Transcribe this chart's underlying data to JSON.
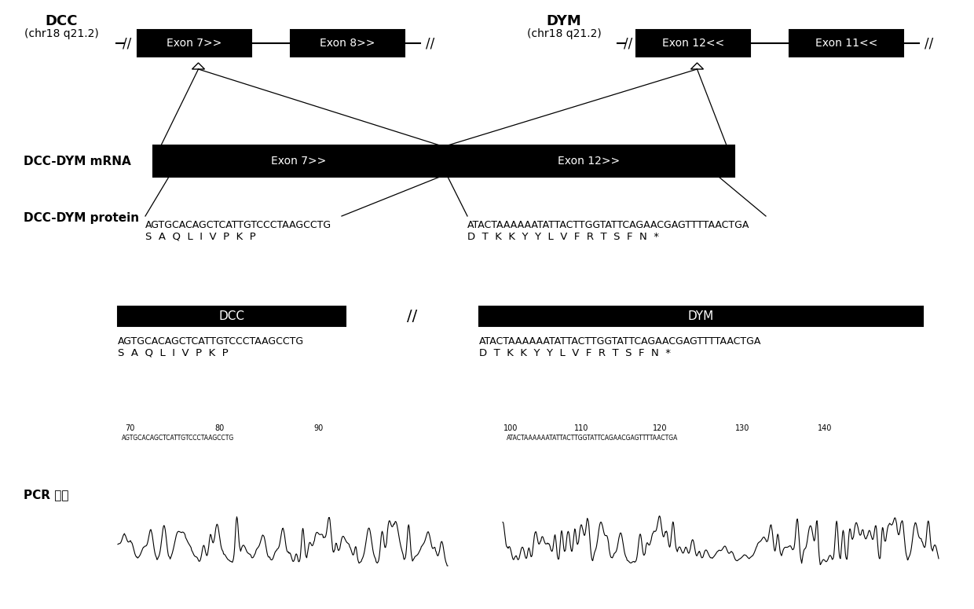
{
  "bg_color": "#ffffff",
  "dcc_label": "DCC",
  "dcc_sublabel": "(chr18 q21.2)",
  "dym_label": "DYM",
  "dym_sublabel": "(chr18 q21.2)",
  "mrna_label": "DCC-DYM mRNA",
  "protein_label": "DCC-DYM protein",
  "pcr_label": "PCR 验证",
  "dcc_exon7": "Exon 7>>",
  "dcc_exon8": "Exon 8>>",
  "dym_exon12": "Exon 12<<",
  "dym_exon11": "Exon 11<<",
  "mrna_exon7": "Exon 7>>",
  "mrna_exon12": "Exon 12>>",
  "dna_seq_left": "AGTGCACAGCTCATTGTCCCTAAGCCTG",
  "aa_seq_left": "S  A  Q  L  I  V  P  K  P",
  "dna_seq_right": "ATACTAAAAAATATTACTTGGTATTCAGAACGAGTTTTAACTGA",
  "aa_seq_right": "D  T  K  K  Y  Y  L  V  F  R  T  S  F  N  *",
  "dcc_box_dna": "AGTGCACAGCTCATTGTCCCTAAGCCTG",
  "dcc_box_aa": "S  A  Q  L  I  V  P  K  P",
  "dym_box_dna": "ATACTAAAAAATATTACTTGGTATTCAGAACGAGTTTTAACTGA",
  "dym_box_aa": "D  T  K  K  Y  Y  L  V  F  R  T  S  F  N  *",
  "break_symbol": "//",
  "nt_left_label": "AGTGCACAGCTCATTGTCCCTAAGCCTG",
  "nt_right_label": "ATACTAAAAAATATTACTTGGTATTCAGAACGAGTTTTAACTGA",
  "pcr_nums_left": [
    "70",
    "80",
    "90"
  ],
  "pcr_nums_right": [
    "100",
    "110",
    "120",
    "130",
    "140"
  ],
  "black": "#000000",
  "white": "#ffffff"
}
